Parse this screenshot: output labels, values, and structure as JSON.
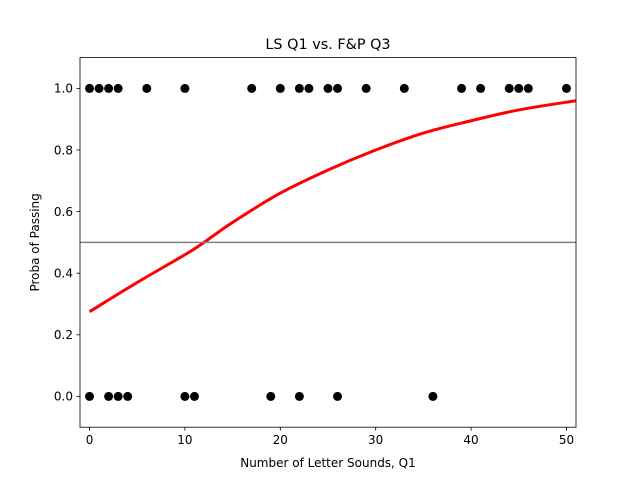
{
  "chart_data": {
    "type": "scatter",
    "title": "LS Q1 vs. F&P Q3",
    "xlabel": "Number of Letter Sounds, Q1",
    "ylabel": "Proba of Passing",
    "xlim": [
      -1,
      51
    ],
    "ylim": [
      -0.1,
      1.1
    ],
    "xticks": [
      0,
      10,
      20,
      30,
      40,
      50
    ],
    "xtick_labels": [
      "0",
      "10",
      "20",
      "30",
      "40",
      "50"
    ],
    "yticks": [
      0.0,
      0.2,
      0.4,
      0.6,
      0.8,
      1.0
    ],
    "ytick_labels": [
      "0.0",
      "0.2",
      "0.4",
      "0.6",
      "0.8",
      "1.0"
    ],
    "grid": false,
    "series": [
      {
        "kind": "scatter",
        "color": "#000000",
        "points": [
          [
            0,
            1
          ],
          [
            1,
            1
          ],
          [
            2,
            1
          ],
          [
            3,
            1
          ],
          [
            6,
            1
          ],
          [
            10,
            1
          ],
          [
            17,
            1
          ],
          [
            20,
            1
          ],
          [
            22,
            1
          ],
          [
            23,
            1
          ],
          [
            25,
            1
          ],
          [
            26,
            1
          ],
          [
            29,
            1
          ],
          [
            33,
            1
          ],
          [
            39,
            1
          ],
          [
            41,
            1
          ],
          [
            44,
            1
          ],
          [
            45,
            1
          ],
          [
            46,
            1
          ],
          [
            50,
            1
          ],
          [
            0,
            0
          ],
          [
            2,
            0
          ],
          [
            3,
            0
          ],
          [
            4,
            0
          ],
          [
            10,
            0
          ],
          [
            11,
            0
          ],
          [
            19,
            0
          ],
          [
            22,
            0
          ],
          [
            26,
            0
          ],
          [
            36,
            0
          ]
        ]
      },
      {
        "kind": "curve",
        "color": "#ff0000",
        "x": [
          0,
          5,
          10,
          12,
          15,
          20,
          25,
          30,
          35,
          40,
          45,
          51
        ],
        "y": [
          0.275,
          0.37,
          0.46,
          0.5,
          0.565,
          0.66,
          0.735,
          0.8,
          0.855,
          0.895,
          0.93,
          0.96
        ]
      },
      {
        "kind": "hline",
        "color": "#808080",
        "y": 0.5
      }
    ]
  }
}
